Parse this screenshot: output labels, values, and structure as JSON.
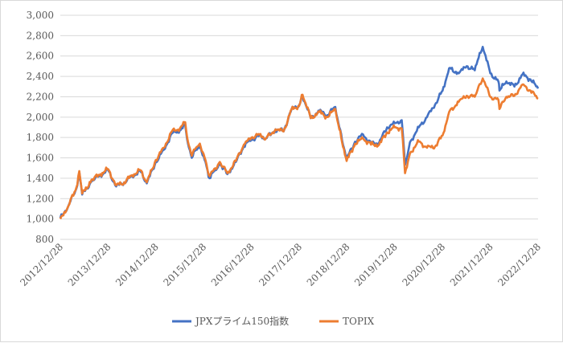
{
  "chart_data": {
    "type": "line",
    "title": "",
    "xlabel": "",
    "ylabel": "",
    "ylim": [
      800,
      3000
    ],
    "yticks": [
      800,
      1000,
      1200,
      1400,
      1600,
      1800,
      2000,
      2200,
      2400,
      2600,
      2800,
      3000
    ],
    "ytick_labels": [
      "800",
      "1,000",
      "1,200",
      "1,400",
      "1,600",
      "1,800",
      "2,000",
      "2,200",
      "2,400",
      "2,600",
      "2,800",
      "3,000"
    ],
    "xlim": [
      "2012-12-28",
      "2022-12-28"
    ],
    "xtick_labels": [
      "2012/12/28",
      "2013/12/28",
      "2014/12/28",
      "2015/12/28",
      "2016/12/28",
      "2017/12/28",
      "2018/12/28",
      "2019/12/28",
      "2020/12/28",
      "2021/12/28",
      "2022/12/28"
    ],
    "x": [
      "2012-12-28",
      "2013-02-28",
      "2013-04-30",
      "2013-05-22",
      "2013-06-13",
      "2013-08-31",
      "2013-10-31",
      "2013-12-28",
      "2014-02-28",
      "2014-04-30",
      "2014-06-30",
      "2014-08-31",
      "2014-10-20",
      "2014-12-28",
      "2015-02-28",
      "2015-04-30",
      "2015-06-30",
      "2015-08-10",
      "2015-08-31",
      "2015-09-29",
      "2015-10-31",
      "2015-11-30",
      "2015-12-28",
      "2016-02-12",
      "2016-04-30",
      "2016-06-27",
      "2016-08-31",
      "2016-10-31",
      "2016-12-28",
      "2017-02-28",
      "2017-04-17",
      "2017-06-30",
      "2017-08-31",
      "2017-10-31",
      "2017-12-28",
      "2018-01-23",
      "2018-03-26",
      "2018-05-31",
      "2018-07-31",
      "2018-09-30",
      "2018-10-31",
      "2018-12-26",
      "2019-02-28",
      "2019-04-30",
      "2019-06-30",
      "2019-08-31",
      "2019-10-31",
      "2019-12-28",
      "2020-02-20",
      "2020-03-16",
      "2020-04-30",
      "2020-06-30",
      "2020-08-31",
      "2020-10-31",
      "2020-12-28",
      "2021-02-16",
      "2021-04-30",
      "2021-06-30",
      "2021-08-31",
      "2021-09-14",
      "2021-10-31",
      "2021-12-28",
      "2022-02-28",
      "2022-03-08",
      "2022-04-30",
      "2022-06-30",
      "2022-08-31",
      "2022-10-31",
      "2022-12-28"
    ],
    "series": [
      {
        "name": "JPXプライム150指数",
        "color": "#4472C4",
        "values": [
          1010,
          1130,
          1300,
          1460,
          1240,
          1380,
          1430,
          1480,
          1320,
          1360,
          1420,
          1470,
          1350,
          1560,
          1680,
          1840,
          1870,
          1920,
          1740,
          1600,
          1680,
          1720,
          1620,
          1400,
          1550,
          1440,
          1560,
          1720,
          1780,
          1820,
          1790,
          1880,
          1860,
          2080,
          2120,
          2210,
          1990,
          2060,
          2020,
          2100,
          1900,
          1590,
          1760,
          1830,
          1740,
          1750,
          1900,
          1940,
          1970,
          1530,
          1770,
          1900,
          2000,
          2120,
          2260,
          2480,
          2430,
          2500,
          2460,
          2520,
          2690,
          2430,
          2350,
          2260,
          2350,
          2300,
          2420,
          2370,
          2280
        ]
      },
      {
        "name": "TOPIX",
        "color": "#ED7D31",
        "values": [
          1000,
          1130,
          1310,
          1470,
          1250,
          1390,
          1440,
          1490,
          1330,
          1360,
          1430,
          1480,
          1360,
          1580,
          1700,
          1860,
          1890,
          1950,
          1760,
          1620,
          1700,
          1740,
          1640,
          1420,
          1560,
          1450,
          1570,
          1730,
          1800,
          1830,
          1790,
          1880,
          1860,
          2080,
          2110,
          2220,
          1990,
          2050,
          2000,
          2080,
          1880,
          1570,
          1740,
          1790,
          1730,
          1730,
          1850,
          1900,
          1890,
          1450,
          1660,
          1760,
          1700,
          1710,
          1820,
          2050,
          2150,
          2210,
          2200,
          2240,
          2380,
          2200,
          2170,
          2080,
          2200,
          2210,
          2320,
          2260,
          2180
        ]
      }
    ],
    "legend_position": "bottom",
    "grid": "horizontal"
  },
  "colors": {
    "grid": "#d9d9d9",
    "axis_text": "#595959",
    "background": "#ffffff"
  }
}
